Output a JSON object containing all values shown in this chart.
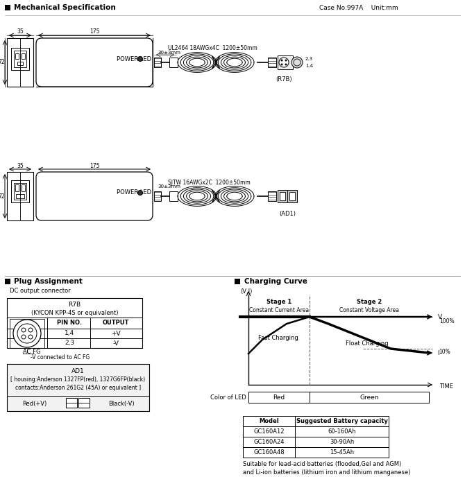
{
  "title_mech": "Mechanical Specification",
  "case_info": "Case No.997A    Unit:mm",
  "bg_color": "#ffffff",
  "section_plug": "Plug Assignment",
  "section_charging": "Charging Curve",
  "dc_output_label": "DC output connector",
  "r7b_title": "R7B",
  "r7b_sub": "(KYCON KPP-4S or equivalent)",
  "pin_header1": "PIN NO.",
  "pin_header2": "OUTPUT",
  "pin_row1": [
    "1,4",
    "+V"
  ],
  "pin_row2": [
    "2,3",
    "-V"
  ],
  "acfg_label": "AC FG",
  "acfg_note": "-V connected to AC FG",
  "ad1_title": "AD1",
  "ad1_line1": "[ housing:Anderson 1327FP(red), 1327G6FP(black)",
  "ad1_line2": "contacts:Anderson 261G2 (45A) or equivalent ]",
  "ad1_red": "Red(+V)",
  "ad1_black": "Black(-V)",
  "stage1_label": "Stage 1",
  "stage2_label": "Stage 2",
  "cc_area": "Constant Current Area",
  "cv_area": "Constant Voltage Area",
  "fast_charging": "Fast Charging",
  "float_charging": "Float Charging",
  "v_label": "V",
  "i_label": "I",
  "time_label": "TIME",
  "vj_label": "(V,I)",
  "pct100": "100%",
  "pct10": "10%",
  "led_label": "Color of LED",
  "red_label": "Red",
  "green_label": "Green",
  "table_header": [
    "Model",
    "Suggested Battery capacity"
  ],
  "table_rows": [
    [
      "GC160A12",
      "60-160Ah"
    ],
    [
      "GC160A24",
      "30-90Ah"
    ],
    [
      "GC160A48",
      "15-45Ah"
    ]
  ],
  "suitable_text1": "Suitable for lead-acid batteries (flooded,Gel and AGM)",
  "suitable_text2": "and Li-ion batteries (lithium iron and lithium manganese)"
}
